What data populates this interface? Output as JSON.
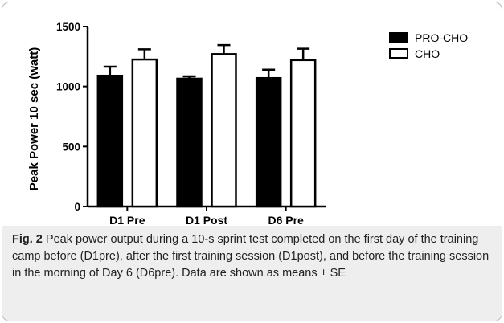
{
  "chart_data": {
    "type": "bar",
    "ylabel": "Peak Power 10 sec (watt)",
    "categories": [
      "D1 Pre",
      "D1 Post",
      "D6 Pre"
    ],
    "series": [
      {
        "name": "PRO-CHO",
        "color": "#000000",
        "values": [
          1090,
          1065,
          1070
        ],
        "errors": [
          75,
          20,
          70
        ]
      },
      {
        "name": "CHO",
        "color": "#ffffff",
        "values": [
          1225,
          1270,
          1220
        ],
        "errors": [
          85,
          75,
          95
        ]
      }
    ],
    "ylim": [
      0,
      1500
    ],
    "yticks": [
      0,
      500,
      1000,
      1500
    ],
    "legend": "upper right",
    "caption_label": "Fig. 2",
    "caption": "Peak power output during a 10-s sprint test completed on the first day of the training camp before (D1pre), after the first training session (D1post), and before the training session in the morning of Day 6 (D6pre). Data are shown as means ± SE"
  }
}
